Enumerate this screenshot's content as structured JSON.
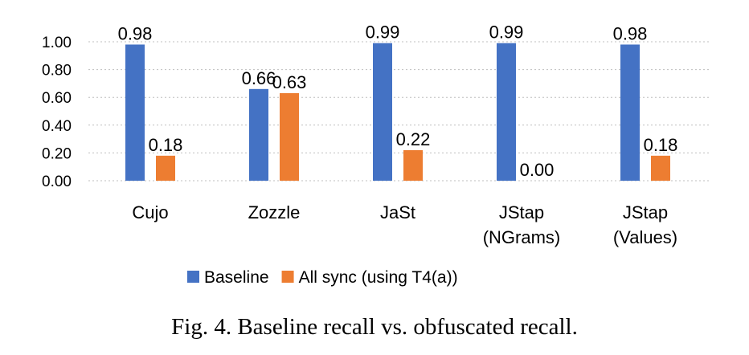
{
  "chart_data": {
    "type": "bar",
    "categories": [
      [
        "Cujo"
      ],
      [
        "Zozzle"
      ],
      [
        "JaSt"
      ],
      [
        "JStap",
        "(NGrams)"
      ],
      [
        "JStap",
        "(Values)"
      ]
    ],
    "series": [
      {
        "name": "Baseline",
        "color": "#4472C4",
        "values": [
          0.98,
          0.66,
          0.99,
          0.99,
          0.98
        ],
        "labels": [
          "0.98",
          "0.66",
          "0.99",
          "0.99",
          "0.98"
        ]
      },
      {
        "name": "All sync (using T4(a))",
        "color": "#ED7D31",
        "values": [
          0.18,
          0.63,
          0.22,
          0.0,
          0.18
        ],
        "labels": [
          "0.18",
          "0.63",
          "0.22",
          "0.00",
          "0.18"
        ]
      }
    ],
    "ylim": [
      0,
      1
    ],
    "yticks": [
      "0.00",
      "0.20",
      "0.40",
      "0.60",
      "0.80",
      "1.00"
    ],
    "grid": true,
    "legend_position": "bottom",
    "caption": "Fig. 4.   Baseline recall vs. obfuscated recall."
  }
}
